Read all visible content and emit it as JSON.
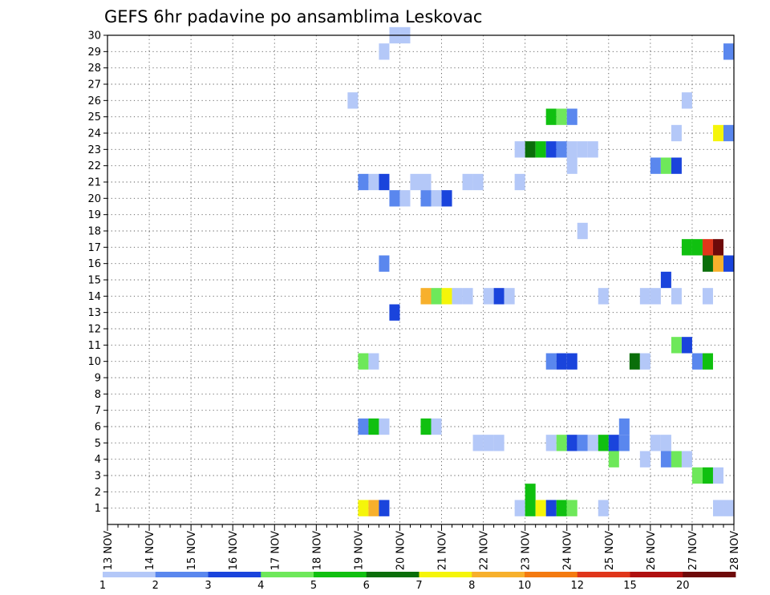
{
  "chart_data": {
    "type": "heatmap",
    "title": "GEFS 6hr padavine po ansamblima Leskovac",
    "xlabel": "",
    "ylabel": "",
    "x_ticks": [
      "13 NOV",
      "14 NOV",
      "15 NOV",
      "16 NOV",
      "17 NOV",
      "18 NOV",
      "19 NOV",
      "20 NOV",
      "21 NOV",
      "22 NOV",
      "23 NOV",
      "24 NOV",
      "25 NOV",
      "26 NOV",
      "27 NOV",
      "28 NOV"
    ],
    "y_ticks": [
      "1",
      "2",
      "3",
      "4",
      "5",
      "6",
      "7",
      "8",
      "9",
      "10",
      "11",
      "12",
      "13",
      "14",
      "15",
      "16",
      "17",
      "18",
      "19",
      "20",
      "21",
      "22",
      "23",
      "24",
      "25",
      "26",
      "27",
      "28",
      "29",
      "30"
    ],
    "x_range": [
      "13 NOV 00",
      "28 NOV 00"
    ],
    "y_range": [
      0,
      30
    ],
    "time_step_hours": 6,
    "grid": true,
    "grid_style": "dotted",
    "colorbar": {
      "position": "bottom",
      "labels": [
        "1",
        "2",
        "3",
        "4",
        "5",
        "6",
        "7",
        "8",
        "10",
        "12",
        "15",
        "20"
      ],
      "colors": [
        "#b4c8f8",
        "#5a87ee",
        "#1a44dc",
        "#6ee85a",
        "#10c010",
        "#0a6e0a",
        "#f5f50a",
        "#f7b02c",
        "#f47a10",
        "#e0361a",
        "#b01010",
        "#6e0a0a"
      ]
    },
    "cells": [
      {
        "member": 30,
        "time": "19 NOV 18",
        "color": 1
      },
      {
        "member": 30,
        "time": "20 NOV 00",
        "color": 1
      },
      {
        "member": 29,
        "time": "19 NOV 12",
        "color": 1
      },
      {
        "member": 29,
        "time": "27 NOV 18",
        "color": 2
      },
      {
        "member": 29,
        "time": "28 NOV 00",
        "color": 4
      },
      {
        "member": 26,
        "time": "18 NOV 18",
        "color": 1
      },
      {
        "member": 26,
        "time": "26 NOV 18",
        "color": 1
      },
      {
        "member": 25,
        "time": "23 NOV 12",
        "color": 5
      },
      {
        "member": 25,
        "time": "23 NOV 18",
        "color": 4
      },
      {
        "member": 25,
        "time": "24 NOV 00",
        "color": 2
      },
      {
        "member": 24,
        "time": "26 NOV 12",
        "color": 1
      },
      {
        "member": 24,
        "time": "27 NOV 12",
        "color": 7
      },
      {
        "member": 24,
        "time": "27 NOV 18",
        "color": 2
      },
      {
        "member": 23,
        "time": "22 NOV 18",
        "color": 1
      },
      {
        "member": 23,
        "time": "23 NOV 00",
        "color": 6
      },
      {
        "member": 23,
        "time": "23 NOV 06",
        "color": 5
      },
      {
        "member": 23,
        "time": "23 NOV 12",
        "color": 3
      },
      {
        "member": 23,
        "time": "23 NOV 18",
        "color": 2
      },
      {
        "member": 23,
        "time": "24 NOV 00",
        "color": 1
      },
      {
        "member": 23,
        "time": "24 NOV 06",
        "color": 1
      },
      {
        "member": 23,
        "time": "24 NOV 12",
        "color": 1
      },
      {
        "member": 22,
        "time": "24 NOV 00",
        "color": 1
      },
      {
        "member": 22,
        "time": "26 NOV 00",
        "color": 2
      },
      {
        "member": 22,
        "time": "26 NOV 06",
        "color": 4
      },
      {
        "member": 22,
        "time": "26 NOV 12",
        "color": 3
      },
      {
        "member": 21,
        "time": "19 NOV 00",
        "color": 2
      },
      {
        "member": 21,
        "time": "19 NOV 06",
        "color": 1
      },
      {
        "member": 21,
        "time": "19 NOV 12",
        "color": 3
      },
      {
        "member": 21,
        "time": "20 NOV 06",
        "color": 1
      },
      {
        "member": 21,
        "time": "20 NOV 12",
        "color": 1
      },
      {
        "member": 21,
        "time": "21 NOV 12",
        "color": 1
      },
      {
        "member": 21,
        "time": "21 NOV 18",
        "color": 1
      },
      {
        "member": 21,
        "time": "22 NOV 18",
        "color": 1
      },
      {
        "member": 21,
        "time": "28 NOV 00",
        "color": 1
      },
      {
        "member": 20,
        "time": "19 NOV 18",
        "color": 2
      },
      {
        "member": 20,
        "time": "20 NOV 00",
        "color": 1
      },
      {
        "member": 20,
        "time": "20 NOV 12",
        "color": 2
      },
      {
        "member": 20,
        "time": "20 NOV 18",
        "color": 1
      },
      {
        "member": 20,
        "time": "21 NOV 00",
        "color": 3
      },
      {
        "member": 18,
        "time": "24 NOV 06",
        "color": 1
      },
      {
        "member": 17,
        "time": "26 NOV 18",
        "color": 5
      },
      {
        "member": 17,
        "time": "27 NOV 00",
        "color": 5
      },
      {
        "member": 17,
        "time": "27 NOV 06",
        "color": 10
      },
      {
        "member": 17,
        "time": "27 NOV 12",
        "color": 12
      },
      {
        "member": 16,
        "time": "19 NOV 12",
        "color": 2
      },
      {
        "member": 16,
        "time": "27 NOV 06",
        "color": 6
      },
      {
        "member": 16,
        "time": "27 NOV 12",
        "color": 8
      },
      {
        "member": 16,
        "time": "27 NOV 18",
        "color": 3
      },
      {
        "member": 15,
        "time": "26 NOV 06",
        "color": 3
      },
      {
        "member": 14,
        "time": "20 NOV 12",
        "color": 8
      },
      {
        "member": 14,
        "time": "20 NOV 18",
        "color": 4
      },
      {
        "member": 14,
        "time": "21 NOV 00",
        "color": 7
      },
      {
        "member": 14,
        "time": "21 NOV 06",
        "color": 1
      },
      {
        "member": 14,
        "time": "21 NOV 12",
        "color": 1
      },
      {
        "member": 14,
        "time": "22 NOV 00",
        "color": 1
      },
      {
        "member": 14,
        "time": "22 NOV 06",
        "color": 3
      },
      {
        "member": 14,
        "time": "22 NOV 12",
        "color": 1
      },
      {
        "member": 14,
        "time": "24 NOV 18",
        "color": 1
      },
      {
        "member": 14,
        "time": "25 NOV 18",
        "color": 1
      },
      {
        "member": 14,
        "time": "26 NOV 00",
        "color": 1
      },
      {
        "member": 14,
        "time": "26 NOV 12",
        "color": 1
      },
      {
        "member": 14,
        "time": "27 NOV 06",
        "color": 1
      },
      {
        "member": 13,
        "time": "19 NOV 18",
        "color": 3
      },
      {
        "member": 11,
        "time": "26 NOV 12",
        "color": 4
      },
      {
        "member": 11,
        "time": "26 NOV 18",
        "color": 3
      },
      {
        "member": 10,
        "time": "19 NOV 00",
        "color": 4
      },
      {
        "member": 10,
        "time": "19 NOV 06",
        "color": 1
      },
      {
        "member": 10,
        "time": "23 NOV 12",
        "color": 2
      },
      {
        "member": 10,
        "time": "23 NOV 18",
        "color": 3
      },
      {
        "member": 10,
        "time": "24 NOV 00",
        "color": 3
      },
      {
        "member": 10,
        "time": "25 NOV 12",
        "color": 6
      },
      {
        "member": 10,
        "time": "25 NOV 18",
        "color": 1
      },
      {
        "member": 10,
        "time": "27 NOV 00",
        "color": 2
      },
      {
        "member": 10,
        "time": "27 NOV 06",
        "color": 5
      },
      {
        "member": 6,
        "time": "19 NOV 00",
        "color": 2
      },
      {
        "member": 6,
        "time": "19 NOV 06",
        "color": 5
      },
      {
        "member": 6,
        "time": "19 NOV 12",
        "color": 1
      },
      {
        "member": 6,
        "time": "20 NOV 12",
        "color": 5
      },
      {
        "member": 6,
        "time": "20 NOV 18",
        "color": 1
      },
      {
        "member": 6,
        "time": "25 NOV 06",
        "color": 2
      },
      {
        "member": 5,
        "time": "21 NOV 18",
        "color": 1
      },
      {
        "member": 5,
        "time": "22 NOV 00",
        "color": 1
      },
      {
        "member": 5,
        "time": "22 NOV 06",
        "color": 1
      },
      {
        "member": 5,
        "time": "23 NOV 12",
        "color": 1
      },
      {
        "member": 5,
        "time": "23 NOV 18",
        "color": 4
      },
      {
        "member": 5,
        "time": "24 NOV 00",
        "color": 3
      },
      {
        "member": 5,
        "time": "24 NOV 06",
        "color": 2
      },
      {
        "member": 5,
        "time": "24 NOV 12",
        "color": 1
      },
      {
        "member": 5,
        "time": "24 NOV 18",
        "color": 5
      },
      {
        "member": 5,
        "time": "25 NOV 00",
        "color": 3
      },
      {
        "member": 5,
        "time": "25 NOV 06",
        "color": 2
      },
      {
        "member": 5,
        "time": "26 NOV 00",
        "color": 1
      },
      {
        "member": 5,
        "time": "26 NOV 06",
        "color": 1
      },
      {
        "member": 4,
        "time": "25 NOV 00",
        "color": 4
      },
      {
        "member": 4,
        "time": "25 NOV 18",
        "color": 1
      },
      {
        "member": 4,
        "time": "26 NOV 06",
        "color": 2
      },
      {
        "member": 4,
        "time": "26 NOV 12",
        "color": 4
      },
      {
        "member": 4,
        "time": "26 NOV 18",
        "color": 1
      },
      {
        "member": 3,
        "time": "27 NOV 00",
        "color": 4
      },
      {
        "member": 3,
        "time": "27 NOV 06",
        "color": 5
      },
      {
        "member": 3,
        "time": "27 NOV 12",
        "color": 1
      },
      {
        "member": 2,
        "time": "23 NOV 00",
        "color": 5
      },
      {
        "member": 2,
        "time": "28 NOV 00",
        "color": 6
      },
      {
        "member": 1,
        "time": "19 NOV 00",
        "color": 7
      },
      {
        "member": 1,
        "time": "19 NOV 06",
        "color": 8
      },
      {
        "member": 1,
        "time": "19 NOV 12",
        "color": 3
      },
      {
        "member": 1,
        "time": "22 NOV 18",
        "color": 1
      },
      {
        "member": 1,
        "time": "23 NOV 00",
        "color": 5
      },
      {
        "member": 1,
        "time": "23 NOV 06",
        "color": 7
      },
      {
        "member": 1,
        "time": "23 NOV 12",
        "color": 3
      },
      {
        "member": 1,
        "time": "23 NOV 18",
        "color": 5
      },
      {
        "member": 1,
        "time": "24 NOV 00",
        "color": 4
      },
      {
        "member": 1,
        "time": "24 NOV 18",
        "color": 1
      },
      {
        "member": 1,
        "time": "27 NOV 12",
        "color": 1
      },
      {
        "member": 1,
        "time": "27 NOV 18",
        "color": 1
      }
    ]
  }
}
